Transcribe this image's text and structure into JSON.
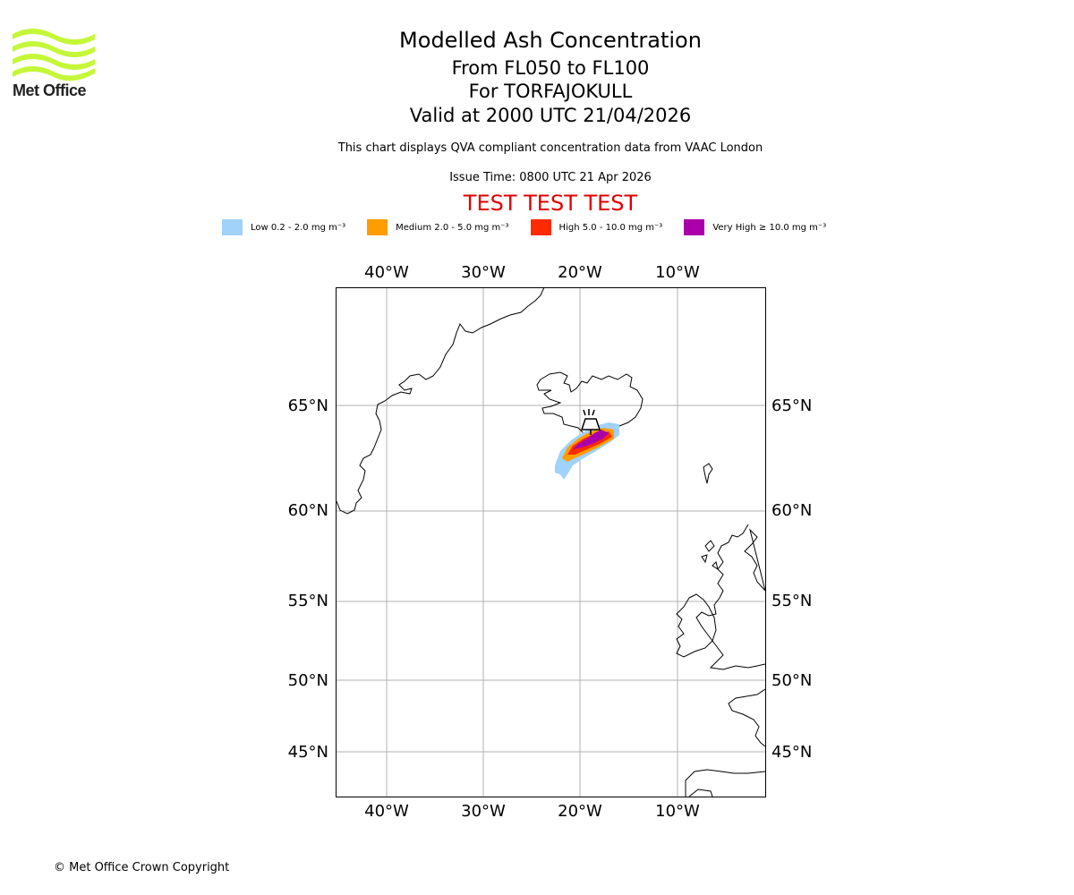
{
  "brand": {
    "name": "Met Office",
    "logo_color": "#c5f739"
  },
  "titles": {
    "main": "Modelled Ash Concentration",
    "levels": "From FL050 to FL100",
    "volcano": "For TORFAJOKULL",
    "valid": "Valid at 2000 UTC 21/04/2026"
  },
  "info": {
    "compliance": "This chart displays QVA compliant concentration data from VAAC London",
    "issue": "Issue Time: 0800 UTC 21 Apr 2026"
  },
  "test_banner": "TEST TEST TEST",
  "legend": [
    {
      "label": "Low 0.2 - 2.0 mg m⁻³",
      "color": "#a0d2fa"
    },
    {
      "label": "Medium 2.0 - 5.0 mg m⁻³",
      "color": "#ff9c00"
    },
    {
      "label": "High 5.0 - 10.0 mg m⁻³",
      "color": "#ff2a00"
    },
    {
      "label": "Very High ≥ 10.0 mg m⁻³",
      "color": "#aa00aa"
    }
  ],
  "map": {
    "lon_ticks": [
      "40°W",
      "30°W",
      "20°W",
      "10°W"
    ],
    "lat_ticks": [
      "65°N",
      "60°N",
      "55°N",
      "50°N",
      "45°N"
    ],
    "grid_color": "#b0b0b0",
    "coast_color": "#000000"
  },
  "copyright": "© Met Office Crown Copyright"
}
